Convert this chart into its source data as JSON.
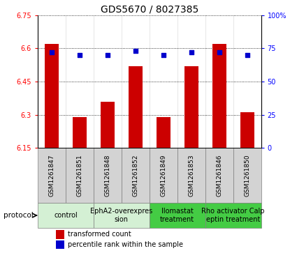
{
  "title": "GDS5670 / 8027385",
  "samples": [
    "GSM1261847",
    "GSM1261851",
    "GSM1261848",
    "GSM1261852",
    "GSM1261849",
    "GSM1261853",
    "GSM1261846",
    "GSM1261850"
  ],
  "transformed_counts": [
    6.62,
    6.29,
    6.36,
    6.52,
    6.29,
    6.52,
    6.62,
    6.31
  ],
  "percentile_ranks": [
    72,
    70,
    70,
    73,
    70,
    72,
    72,
    70
  ],
  "ylim_left": [
    6.15,
    6.75
  ],
  "ylim_right": [
    0,
    100
  ],
  "yticks_left": [
    6.15,
    6.3,
    6.45,
    6.6,
    6.75
  ],
  "yticks_right": [
    0,
    25,
    50,
    75,
    100
  ],
  "bar_color": "#cc0000",
  "dot_color": "#0000cc",
  "bar_base": 6.15,
  "protocols": [
    {
      "label": "control",
      "samples": [
        0,
        1
      ],
      "color": "#d4f0d4"
    },
    {
      "label": "EphA2-overexpres\nsion",
      "samples": [
        2,
        3
      ],
      "color": "#d4f0d4"
    },
    {
      "label": "Ilomastat\ntreatment",
      "samples": [
        4,
        5
      ],
      "color": "#44cc44"
    },
    {
      "label": "Rho activator Calp\neptin treatment",
      "samples": [
        6,
        7
      ],
      "color": "#44cc44"
    }
  ],
  "protocol_label": "protocol",
  "legend_bar_label": "transformed count",
  "legend_dot_label": "percentile rank within the sample",
  "title_fontsize": 10,
  "tick_fontsize": 7,
  "sample_label_fontsize": 6.5,
  "proto_label_fontsize": 7,
  "legend_fontsize": 7
}
